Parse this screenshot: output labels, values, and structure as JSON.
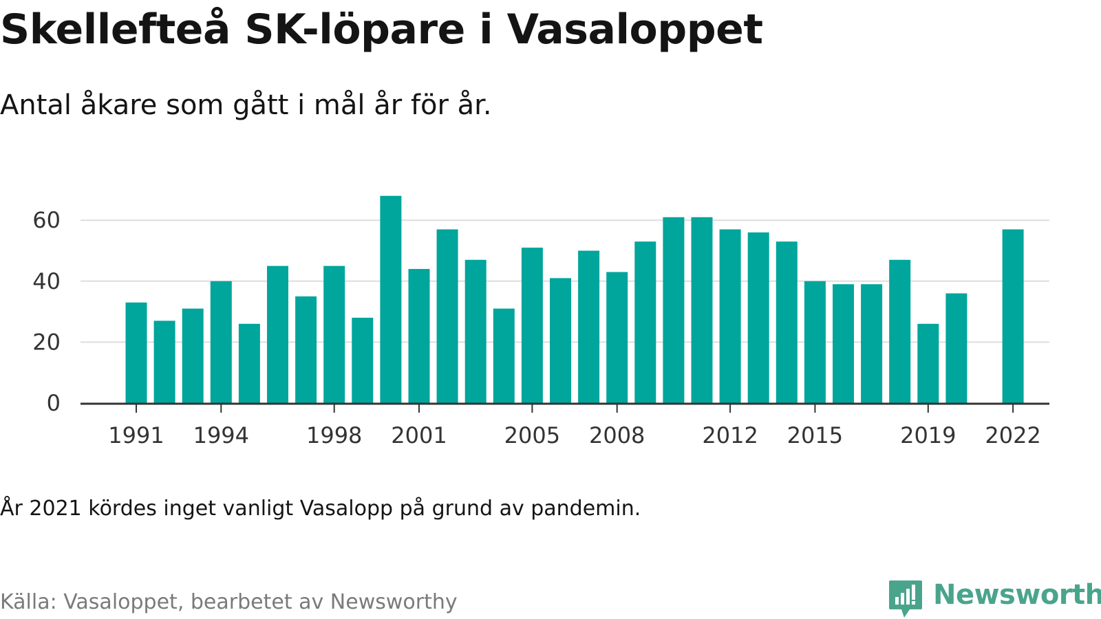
{
  "title": "Skellefteå SK-löpare i Vasaloppet",
  "subtitle": "Antal åkare som gått i mål år för år.",
  "note": "År 2021 kördes inget vanligt Vasalopp på grund av pandemin.",
  "source": "Källa: Vasaloppet, bearbetet av Newsworthy",
  "logo": {
    "text": "Newsworthy",
    "icon": "newsworthy-chart-bubble-icon"
  },
  "colors": {
    "bar": "#00a59c",
    "grid": "#dddddd",
    "axis": "#333333",
    "logo": "#4aa48c",
    "source": "#7a7a7a"
  },
  "chart_data": {
    "type": "bar",
    "title": "",
    "xlabel": "",
    "ylabel": "",
    "ylim": [
      0,
      70
    ],
    "yticks": [
      0,
      20,
      40,
      60
    ],
    "grid": true,
    "x_tick_labels": [
      1991,
      1994,
      1998,
      2001,
      2005,
      2008,
      2012,
      2015,
      2019,
      2022
    ],
    "categories": [
      1991,
      1992,
      1993,
      1994,
      1995,
      1996,
      1997,
      1998,
      1999,
      2000,
      2001,
      2002,
      2003,
      2004,
      2005,
      2006,
      2007,
      2008,
      2009,
      2010,
      2011,
      2012,
      2013,
      2014,
      2015,
      2016,
      2017,
      2018,
      2019,
      2020,
      2021,
      2022
    ],
    "values": [
      33,
      27,
      31,
      40,
      26,
      45,
      35,
      45,
      28,
      68,
      44,
      57,
      47,
      31,
      51,
      41,
      50,
      43,
      53,
      61,
      61,
      57,
      56,
      53,
      40,
      39,
      39,
      47,
      26,
      36,
      null,
      57
    ]
  }
}
